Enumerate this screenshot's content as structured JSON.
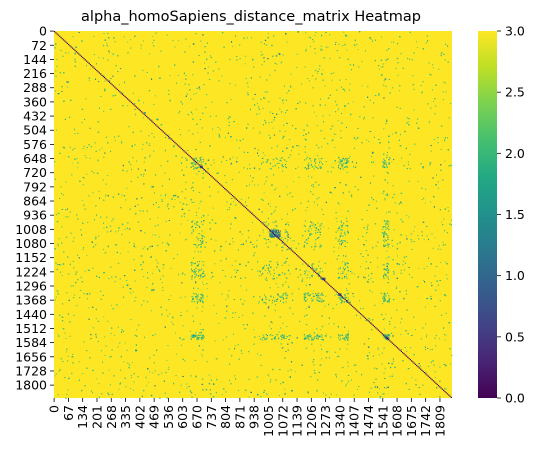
{
  "chart_data": {
    "type": "heatmap",
    "title": "alpha_homoSapiens_distance_matrix Heatmap",
    "xlabel": "",
    "ylabel": "",
    "matrix_size": 1866,
    "y_tick_labels": [
      0,
      72,
      144,
      216,
      288,
      360,
      432,
      504,
      576,
      648,
      720,
      792,
      864,
      936,
      1008,
      1080,
      1152,
      1224,
      1296,
      1368,
      1440,
      1512,
      1584,
      1656,
      1728,
      1800
    ],
    "x_tick_labels": [
      0,
      67,
      134,
      201,
      268,
      335,
      402,
      469,
      536,
      603,
      670,
      737,
      804,
      871,
      938,
      1005,
      1072,
      1139,
      1206,
      1273,
      1340,
      1407,
      1474,
      1541,
      1608,
      1675,
      1742,
      1809
    ],
    "value_range": [
      0.0,
      3.0
    ],
    "dominant_value": 3.0,
    "diagonal_value": 0.0,
    "colormap": "viridis",
    "colorbar": {
      "ticks": [
        0.0,
        0.5,
        1.0,
        1.5,
        2.0,
        2.5,
        3.0
      ],
      "tick_labels": [
        "0.0",
        "0.5",
        "1.0",
        "1.5",
        "2.0",
        "2.5",
        "3.0"
      ]
    },
    "legend": "colorbar-right",
    "grid": false
  }
}
